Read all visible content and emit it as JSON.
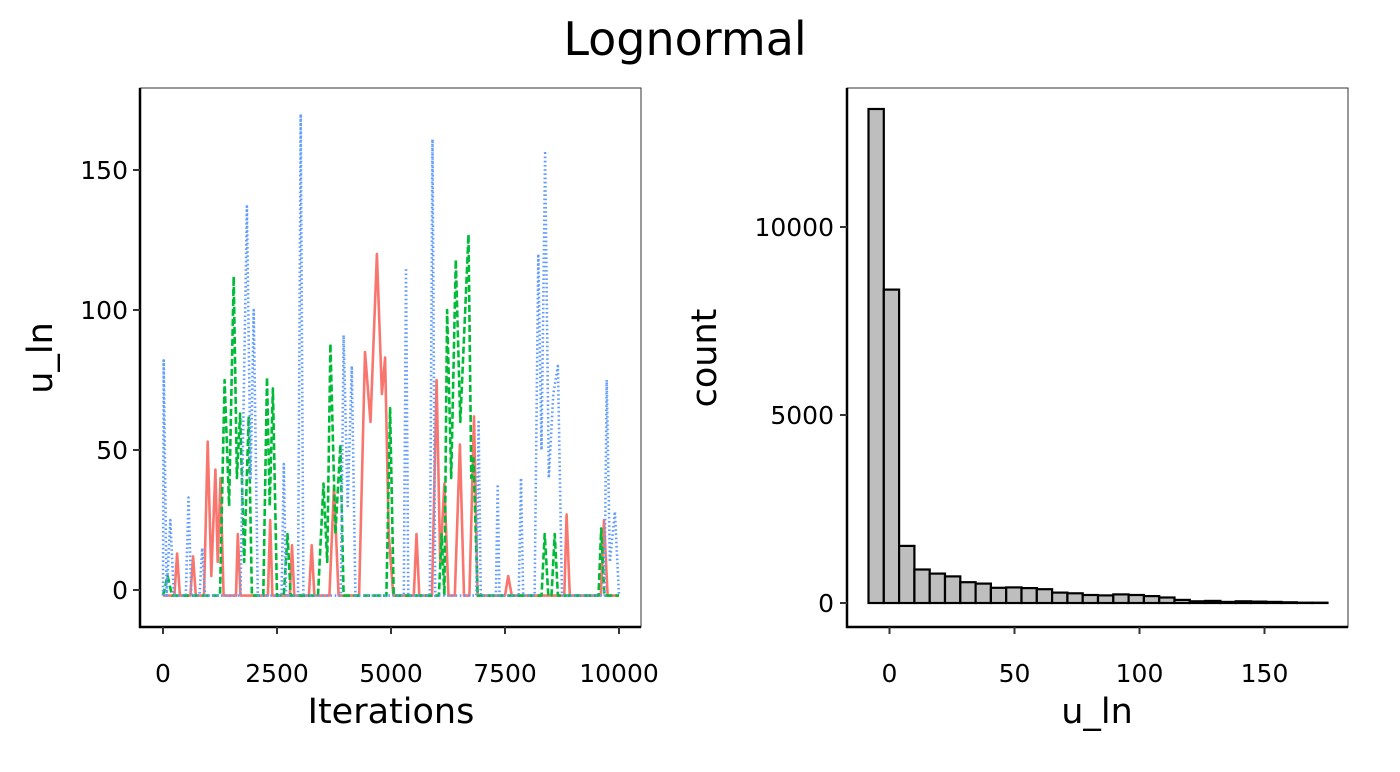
{
  "title": "Lognormal",
  "chart_data": [
    {
      "type": "line",
      "xlabel": "Iterations",
      "ylabel": "u_ln",
      "xlim": [
        0,
        10000
      ],
      "ylim": [
        -13,
        178
      ],
      "x_ticks": [
        "0",
        "2500",
        "5000",
        "7500",
        "10000"
      ],
      "x_tick_values": [
        0,
        2500,
        5000,
        7500,
        10000
      ],
      "y_ticks": [
        "0",
        "50",
        "100",
        "150"
      ],
      "y_tick_values": [
        0,
        50,
        100,
        150
      ],
      "grid": false,
      "series": [
        {
          "color": "#F8766D",
          "linestyle": "solid",
          "x": [
            0,
            250,
            310,
            370,
            600,
            660,
            720,
            900,
            980,
            1060,
            1150,
            1200,
            1260,
            1330,
            1600,
            1640,
            1700,
            2300,
            2350,
            2400,
            2780,
            2830,
            2880,
            3200,
            3260,
            3320,
            3650,
            3750,
            3850,
            4300,
            4430,
            4550,
            4690,
            4800,
            4870,
            4950,
            5050,
            5500,
            5560,
            5620,
            5900,
            6000,
            6080,
            6170,
            6260,
            6400,
            6510,
            6600,
            6720,
            6820,
            6900,
            7500,
            7570,
            7650,
            8800,
            8850,
            8920,
            9600,
            9670,
            9750,
            10000
          ],
          "y": [
            -2,
            -2,
            13,
            -2,
            -2,
            12,
            -2,
            -2,
            53,
            5,
            43,
            10,
            40,
            -2,
            -2,
            20,
            -2,
            -2,
            25,
            -2,
            -2,
            16,
            -2,
            -2,
            16,
            -2,
            -2,
            37,
            -2,
            -2,
            85,
            60,
            120,
            70,
            83,
            20,
            -2,
            -2,
            20,
            -2,
            -2,
            75,
            10,
            38,
            -2,
            -2,
            52,
            -2,
            -2,
            62,
            -2,
            -2,
            5,
            -2,
            -2,
            27,
            -2,
            -2,
            25,
            -2,
            -2
          ]
        },
        {
          "color": "#00BA38",
          "linestyle": "dashed",
          "x": [
            0,
            100,
            200,
            1250,
            1350,
            1450,
            1550,
            1620,
            1690,
            1780,
            1880,
            1950,
            2200,
            2280,
            2340,
            2410,
            2500,
            2650,
            2730,
            2800,
            3400,
            3520,
            3600,
            3670,
            3780,
            3890,
            3960,
            4900,
            4980,
            5060,
            6050,
            6110,
            6170,
            6230,
            6320,
            6420,
            6520,
            6600,
            6700,
            6760,
            6810,
            6900,
            8300,
            8370,
            8450,
            8520,
            8590,
            8660,
            9550,
            9610,
            9680,
            10000
          ],
          "y": [
            -2,
            5,
            -2,
            -2,
            75,
            30,
            112,
            40,
            63,
            10,
            62,
            -2,
            -2,
            76,
            30,
            72,
            -2,
            -2,
            20,
            -2,
            -2,
            38,
            10,
            88,
            20,
            52,
            -2,
            -2,
            65,
            -2,
            -2,
            20,
            -2,
            100,
            40,
            118,
            60,
            90,
            127,
            40,
            47,
            -2,
            -2,
            20,
            -2,
            -2,
            20,
            -2,
            -2,
            22,
            -2,
            -2
          ]
        },
        {
          "color": "#619CFF",
          "linestyle": "dotted",
          "x": [
            0,
            15,
            80,
            160,
            240,
            500,
            560,
            620,
            800,
            860,
            920,
            1700,
            1840,
            1920,
            1990,
            2080,
            2600,
            2650,
            2700,
            2960,
            3020,
            3080,
            3900,
            3960,
            4050,
            4140,
            4220,
            5280,
            5330,
            5380,
            5850,
            5910,
            5970,
            6870,
            6920,
            6970,
            7300,
            7340,
            7380,
            7800,
            7850,
            7900,
            8150,
            8230,
            8300,
            8380,
            8460,
            8560,
            8660,
            8750,
            9680,
            9730,
            9800,
            9910,
            10000
          ],
          "y": [
            -2,
            82,
            -2,
            25,
            -2,
            -2,
            33,
            -2,
            -2,
            15,
            -2,
            -2,
            137,
            40,
            100,
            -2,
            -2,
            45,
            -2,
            -2,
            170,
            -2,
            -2,
            91,
            30,
            80,
            -2,
            -2,
            115,
            -2,
            -2,
            161,
            -2,
            -2,
            60,
            -2,
            -2,
            37,
            -2,
            -2,
            40,
            -2,
            -2,
            120,
            50,
            156,
            40,
            70,
            80,
            -2,
            -2,
            75,
            10,
            28,
            -2
          ]
        }
      ]
    },
    {
      "type": "bar",
      "subtype": "histogram",
      "xlabel": "u_ln",
      "ylabel": "count",
      "bins": 30,
      "bin_range": [
        -8.4,
        175.2
      ],
      "counts": [
        13137,
        8335,
        1518,
        892,
        782,
        708,
        552,
        515,
        405,
        414,
        396,
        368,
        276,
        258,
        212,
        202,
        230,
        212,
        184,
        147,
        83,
        46,
        55,
        28,
        46,
        37,
        28,
        18,
        9,
        9
      ],
      "fill": "#BEBEBE",
      "outline": "#000000",
      "xlim": [
        -11,
        184
      ],
      "ylim": [
        -650,
        13790
      ],
      "x_ticks": [
        "0",
        "50",
        "100",
        "150"
      ],
      "x_tick_values": [
        0,
        50,
        100,
        150
      ],
      "y_ticks": [
        "0",
        "5000",
        "10000"
      ],
      "y_tick_values": [
        0,
        5000,
        10000
      ],
      "grid": false
    }
  ]
}
